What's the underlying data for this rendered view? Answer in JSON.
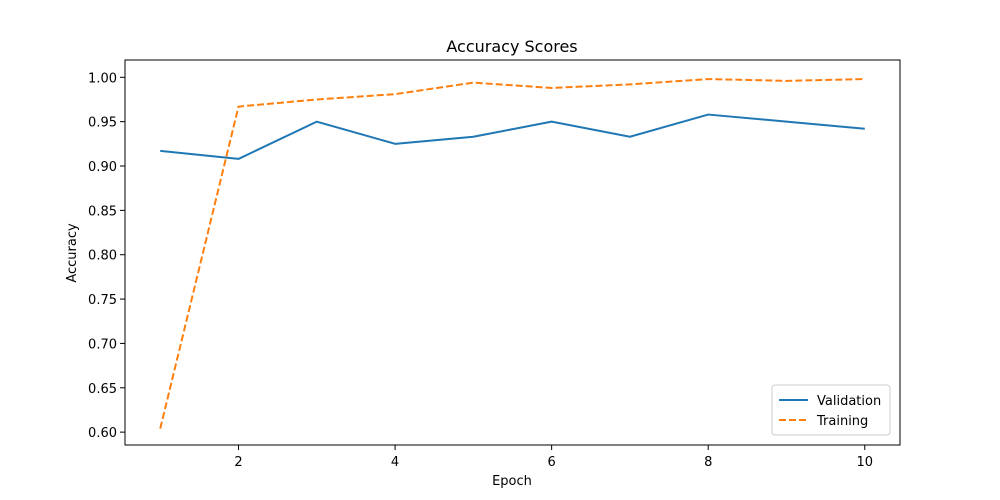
{
  "chart_data": {
    "type": "line",
    "title": "Accuracy Scores",
    "xlabel": "Epoch",
    "ylabel": "Accuracy",
    "xlim": [
      0.55,
      10.45
    ],
    "ylim": [
      0.5855,
      1.0195
    ],
    "x_ticks": [
      2,
      4,
      6,
      8,
      10
    ],
    "y_ticks": [
      0.6,
      0.65,
      0.7,
      0.75,
      0.8,
      0.85,
      0.9,
      0.95,
      1.0
    ],
    "x": [
      1,
      2,
      3,
      4,
      5,
      6,
      7,
      8,
      9,
      10
    ],
    "series": [
      {
        "name": "Validation",
        "color": "#1f77b4",
        "style": "solid",
        "values": [
          0.917,
          0.908,
          0.95,
          0.925,
          0.933,
          0.95,
          0.933,
          0.958,
          0.95,
          0.942
        ]
      },
      {
        "name": "Training",
        "color": "#ff7f0e",
        "style": "dashed",
        "values": [
          0.604,
          0.967,
          0.975,
          0.981,
          0.994,
          0.988,
          0.992,
          0.998,
          0.996,
          0.998
        ]
      }
    ],
    "legend_position": "lower-right",
    "grid": false
  }
}
